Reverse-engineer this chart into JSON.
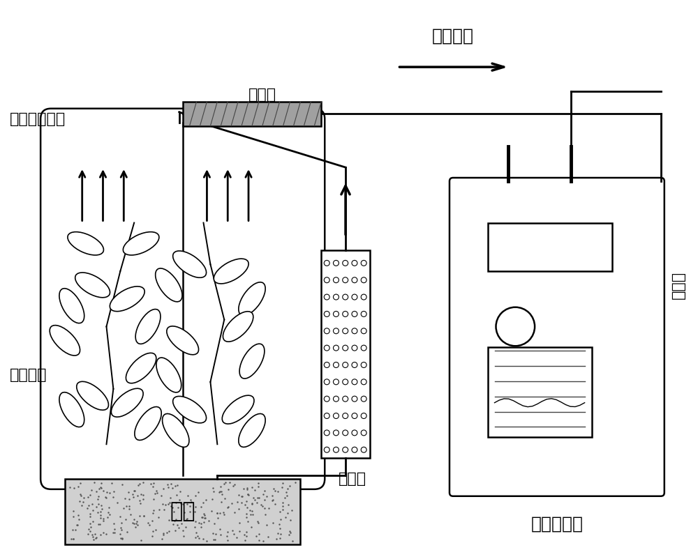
{
  "title": "",
  "background_color": "#ffffff",
  "labels": {
    "main_flow": "主流方向",
    "adsorption_column": "吸附柱",
    "pe_bag": "聚乙烯保鲜袋",
    "aromatic_plant": "芳香植物",
    "activated_carbon": "活性炭",
    "silicone_tube": "硅胶管",
    "soil": "土壤",
    "air_sampler": "空气采样器"
  },
  "figsize": [
    10.0,
    7.89
  ],
  "dpi": 100
}
